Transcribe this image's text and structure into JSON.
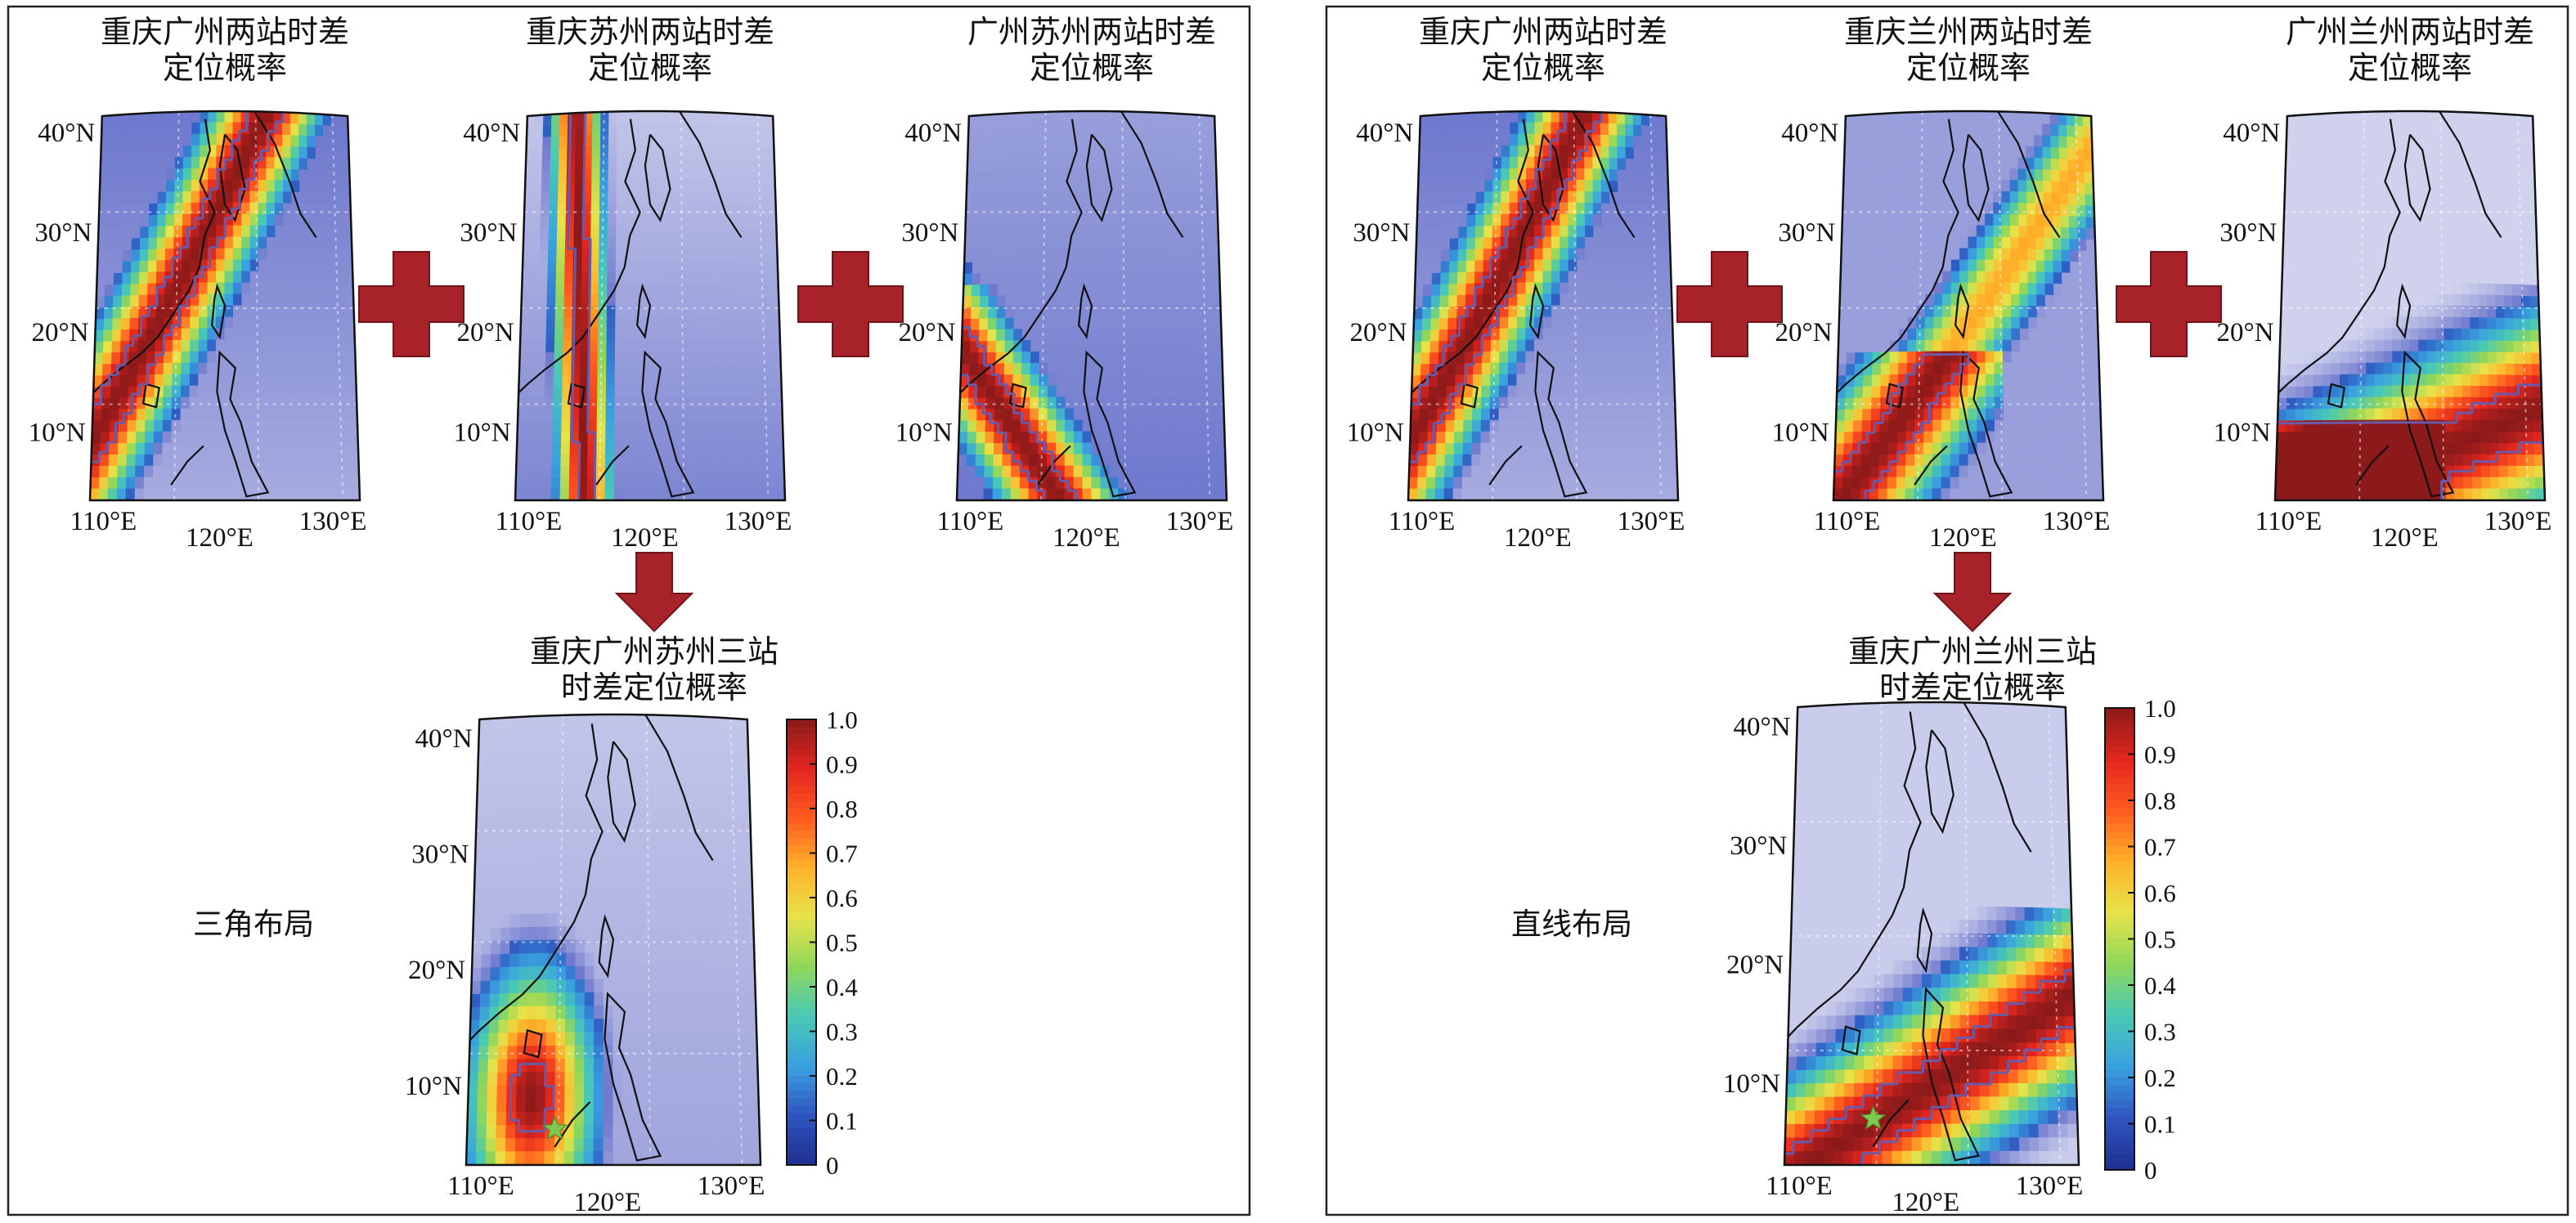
{
  "colors": {
    "frame": "#222222",
    "plus": "#a8222a",
    "arrow": "#a8222a",
    "contour": "#6a5aa8",
    "coast": "#111111",
    "star": "#7ec850",
    "colormap": [
      "#1f2f8f",
      "#2f55c0",
      "#3aa0e0",
      "#48c9b6",
      "#8fd65a",
      "#e6e34a",
      "#ffb229",
      "#ff5a1f",
      "#e2261f",
      "#8b1a1a"
    ]
  },
  "icons": {
    "plus": "plus-icon",
    "arrow": "down-arrow-icon",
    "star": "star-icon"
  },
  "tick_labels": {
    "lat": [
      "40°N",
      "30°N",
      "20°N",
      "10°N"
    ],
    "lon": [
      "110°E",
      "120°E",
      "130°E"
    ]
  },
  "colorbar_ticks": [
    "1.0",
    "0.9",
    "0.8",
    "0.7",
    "0.6",
    "0.5",
    "0.4",
    "0.3",
    "0.2",
    "0.1",
    "0"
  ],
  "panels": [
    {
      "layout_label": "三角布局",
      "maps": [
        {
          "title": [
            "重庆广州两站时差",
            "定位概率"
          ],
          "pattern": "cq-gz"
        },
        {
          "title": [
            "重庆苏州两站时差",
            "定位概率"
          ],
          "pattern": "cq-sz"
        },
        {
          "title": [
            "广州苏州两站时差",
            "定位概率"
          ],
          "pattern": "gz-sz"
        }
      ],
      "result": {
        "title": [
          "重庆广州苏州三站",
          "时差定位概率"
        ],
        "pattern": "tri"
      }
    },
    {
      "layout_label": "直线布局",
      "maps": [
        {
          "title": [
            "重庆广州两站时差",
            "定位概率"
          ],
          "pattern": "cq-gz"
        },
        {
          "title": [
            "重庆兰州两站时差",
            "定位概率"
          ],
          "pattern": "cq-lz"
        },
        {
          "title": [
            "广州兰州两站时差",
            "定位概率"
          ],
          "pattern": "gz-lz"
        }
      ],
      "result": {
        "title": [
          "重庆广州兰州三站",
          "时差定位概率"
        ],
        "pattern": "lin"
      }
    }
  ]
}
